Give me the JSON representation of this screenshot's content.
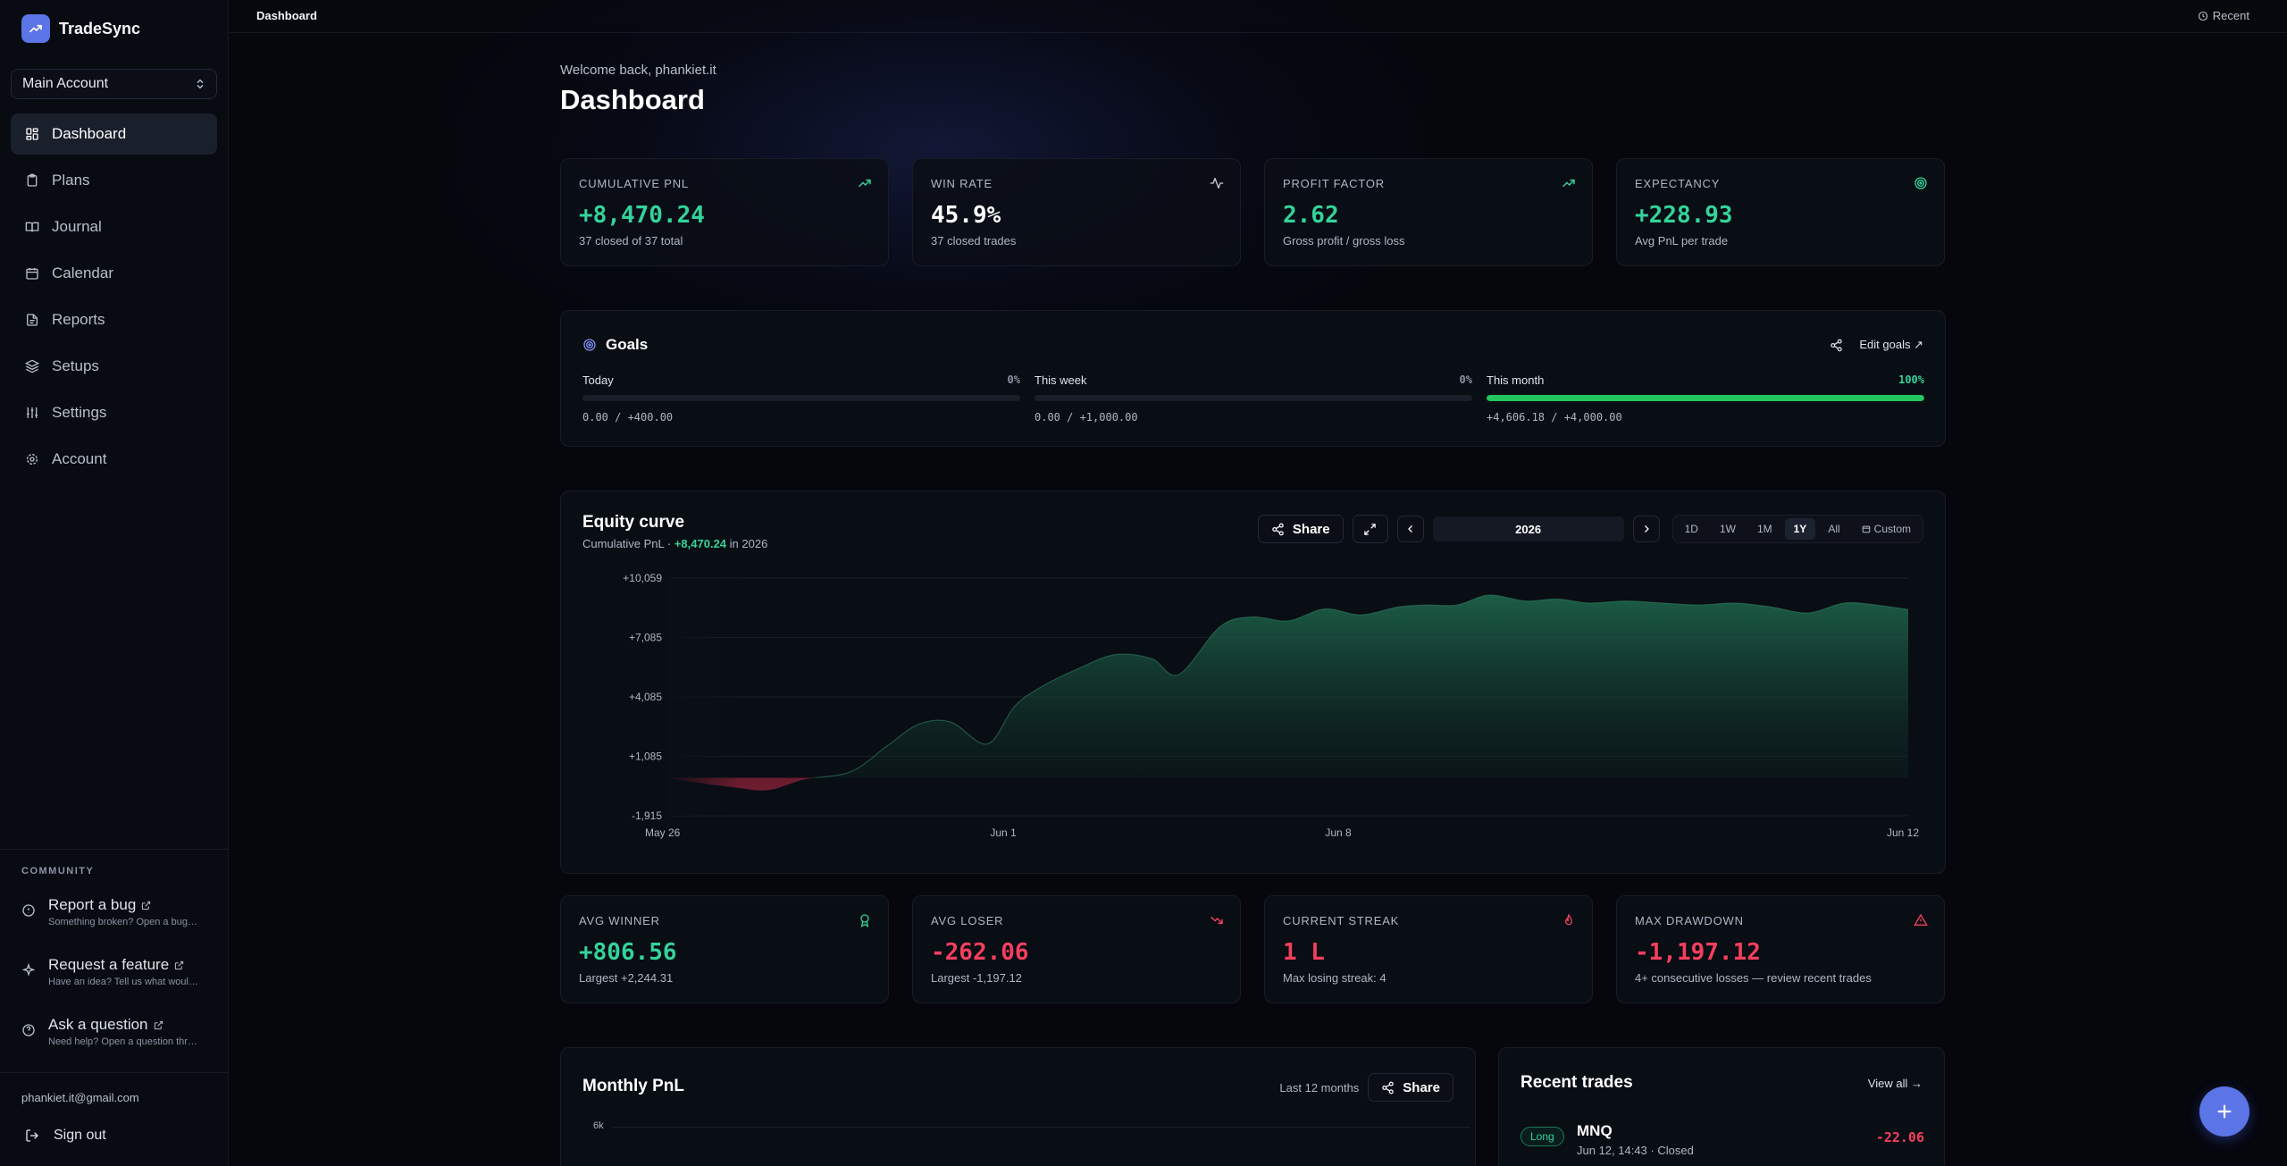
{
  "app": {
    "name": "TradeSync"
  },
  "sidebar": {
    "account_selector": "Main Account",
    "nav": [
      {
        "label": "Dashboard",
        "icon": "dashboard-icon",
        "active": true
      },
      {
        "label": "Plans",
        "icon": "clipboard-icon"
      },
      {
        "label": "Journal",
        "icon": "book-icon"
      },
      {
        "label": "Calendar",
        "icon": "calendar-icon"
      },
      {
        "label": "Reports",
        "icon": "document-icon"
      },
      {
        "label": "Setups",
        "icon": "layers-icon"
      },
      {
        "label": "Settings",
        "icon": "sliders-icon"
      },
      {
        "label": "Account",
        "icon": "gear-icon"
      }
    ],
    "community": {
      "title": "COMMUNITY",
      "items": [
        {
          "title": "Report a bug",
          "sub": "Something broken? Open a bug re..."
        },
        {
          "title": "Request a feature",
          "sub": "Have an idea? Tell us what would ..."
        },
        {
          "title": "Ask a question",
          "sub": "Need help? Open a question threa..."
        }
      ]
    },
    "user_email": "phankiet.it@gmail.com",
    "sign_out": "Sign out"
  },
  "topbar": {
    "breadcrumb": "Dashboard",
    "recent": "Recent"
  },
  "header": {
    "welcome": "Welcome back, phankiet.it",
    "title": "Dashboard"
  },
  "stats_top": [
    {
      "label": "CUMULATIVE PNL",
      "value": "+8,470.24",
      "sub": "37 closed of 37 total",
      "tone": "green",
      "icon": "trending-up-icon"
    },
    {
      "label": "WIN RATE",
      "value": "45.9%",
      "sub": "37 closed trades",
      "tone": "white",
      "icon": "activity-icon"
    },
    {
      "label": "PROFIT FACTOR",
      "value": "2.62",
      "sub": "Gross profit / gross loss",
      "tone": "green",
      "icon": "trending-up-icon"
    },
    {
      "label": "EXPECTANCY",
      "value": "+228.93",
      "sub": "Avg PnL per trade",
      "tone": "green",
      "icon": "target-icon"
    }
  ],
  "goals": {
    "title": "Goals",
    "edit_label": "Edit goals ↗",
    "items": [
      {
        "label": "Today",
        "pct": "0%",
        "progress": 0,
        "values": "0.00 / +400.00"
      },
      {
        "label": "This week",
        "pct": "0%",
        "progress": 0,
        "values": "0.00 / +1,000.00"
      },
      {
        "label": "This month",
        "pct": "100%",
        "progress": 100,
        "values": "+4,606.18 / +4,000.00"
      }
    ]
  },
  "equity": {
    "title": "Equity curve",
    "sub_prefix": "Cumulative PnL · ",
    "sub_value": "+8,470.24",
    "sub_suffix": " in 2026",
    "share_label": "Share",
    "year": "2026",
    "ranges": [
      "1D",
      "1W",
      "1M",
      "1Y",
      "All",
      "Custom"
    ],
    "active_range": "1Y"
  },
  "chart_data": {
    "type": "area",
    "title": "Equity curve",
    "y_ticks": [
      "+10,059",
      "+7,085",
      "+4,085",
      "+1,085",
      "-1,915"
    ],
    "ylim": [
      -1915,
      10059
    ],
    "x_ticks": [
      "May 26",
      "Jun 1",
      "Jun 8",
      "Jun 12"
    ],
    "x": [
      0,
      0.5,
      1.5,
      2.2,
      3,
      4,
      4.8,
      5.5,
      6.2,
      7,
      7.6,
      8.2,
      9,
      9.8,
      10.6,
      11.2,
      12.1,
      12.8,
      13.6,
      14.4,
      15.2,
      16,
      16.6,
      17.3,
      18,
      18.8,
      19.5,
      20.2,
      21,
      21.8,
      22.6,
      23.4,
      24.2,
      25,
      25.8,
      26.5,
      27.2
    ],
    "y": [
      0,
      -200,
      -500,
      -620,
      -80,
      300,
      1600,
      2700,
      2800,
      1700,
      3600,
      4600,
      5500,
      6200,
      6000,
      5200,
      7600,
      8100,
      7900,
      8500,
      8200,
      8600,
      8700,
      8700,
      9200,
      8900,
      9000,
      8800,
      8900,
      8800,
      8700,
      8800,
      8600,
      8300,
      8800,
      8700,
      8470
    ],
    "series": [
      {
        "color": "#34d399"
      }
    ]
  },
  "stats_bottom": [
    {
      "label": "AVG WINNER",
      "value": "+806.56",
      "sub": "Largest +2,244.31",
      "tone": "green",
      "icon": "award-icon"
    },
    {
      "label": "AVG LOSER",
      "value": "-262.06",
      "sub": "Largest -1,197.12",
      "tone": "red",
      "icon": "trending-down-icon"
    },
    {
      "label": "CURRENT STREAK",
      "value": "1 L",
      "sub": "Max losing streak: 4",
      "tone": "red",
      "icon": "flame-icon"
    },
    {
      "label": "MAX DRAWDOWN",
      "value": "-1,197.12",
      "sub": "4+ consecutive losses — review recent trades",
      "tone": "red",
      "icon": "alert-triangle-icon"
    }
  ],
  "monthly": {
    "title": "Monthly PnL",
    "range_label": "Last 12 months",
    "share_label": "Share",
    "tick": "6k"
  },
  "recent_trades": {
    "title": "Recent trades",
    "view_all": "View all →",
    "items": [
      {
        "side": "Long",
        "symbol": "MNQ",
        "meta": "Jun 12, 14:43 · Closed",
        "pnl": "-22.06"
      }
    ]
  },
  "colors": {
    "accent": "#5b74e6",
    "positive": "#34d399",
    "negative": "#f43f5e",
    "background": "#05070d"
  }
}
